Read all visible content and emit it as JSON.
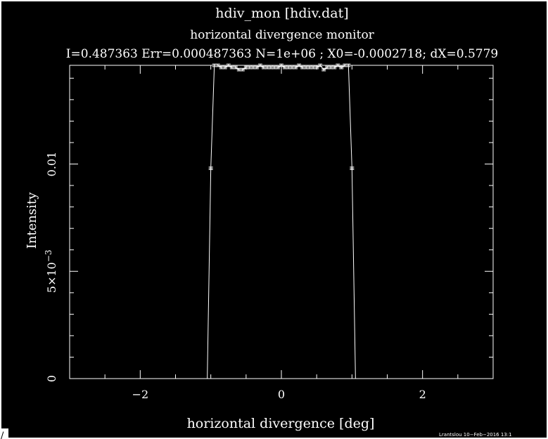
{
  "window": {
    "corner_glyph": "∕"
  },
  "chart_data": {
    "type": "line",
    "title": "hdiv_mon [hdiv.dat]",
    "subtitle": "horizontal divergence monitor",
    "stats_line": "I=0.487363 Err=0.000487363 N=1e+06 ; X0=-0.0002718; dX=0.5779",
    "xlabel": "horizontal divergence [deg]",
    "ylabel": "Intensity",
    "xlim": [
      -3,
      3
    ],
    "ylim": [
      0,
      0.0146
    ],
    "xticks": [
      {
        "value": -2,
        "label": "−2"
      },
      {
        "value": 0,
        "label": "0"
      },
      {
        "value": 2,
        "label": "2"
      }
    ],
    "yticks": [
      {
        "value": 0,
        "label": "0",
        "sup": ""
      },
      {
        "value": 0.005,
        "label": "5×10",
        "sup": "−3"
      },
      {
        "value": 0.01,
        "label": "0.01",
        "sup": ""
      }
    ],
    "credit": "Lrantslou 10−Feb−2016 13:1",
    "grid": false,
    "series": [
      {
        "x": [
          -1.05,
          -1.0,
          -0.95,
          -0.9,
          -0.85,
          -0.8,
          -0.75,
          -0.7,
          -0.65,
          -0.6,
          -0.55,
          -0.5,
          -0.45,
          -0.4,
          -0.35,
          -0.3,
          -0.25,
          -0.2,
          -0.15,
          -0.1,
          -0.05,
          0.0,
          0.05,
          0.1,
          0.15,
          0.2,
          0.25,
          0.3,
          0.35,
          0.4,
          0.45,
          0.5,
          0.55,
          0.6,
          0.65,
          0.7,
          0.75,
          0.8,
          0.85,
          0.9,
          0.95,
          1.0,
          1.05
        ],
        "y": [
          0.0,
          0.0098,
          0.0146,
          0.0146,
          0.0145,
          0.0145,
          0.0146,
          0.0145,
          0.0145,
          0.0144,
          0.0144,
          0.0145,
          0.0145,
          0.0145,
          0.0145,
          0.0146,
          0.0145,
          0.0145,
          0.0145,
          0.0145,
          0.0145,
          0.0146,
          0.0145,
          0.0145,
          0.0145,
          0.0145,
          0.0146,
          0.0145,
          0.0145,
          0.0145,
          0.0145,
          0.0145,
          0.0146,
          0.0144,
          0.0145,
          0.0145,
          0.0145,
          0.0146,
          0.0145,
          0.0146,
          0.0146,
          0.0098,
          0.0
        ]
      }
    ]
  }
}
